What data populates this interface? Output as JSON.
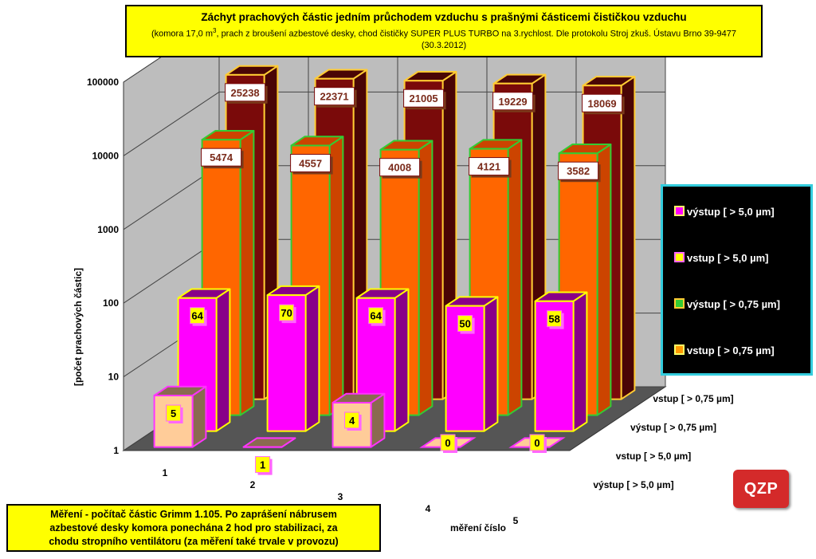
{
  "chart_data": {
    "type": "bar",
    "title": "Záchyt prachových částic jedním průchodem  vzduchu s prašnými částicemi čističkou vzduchu",
    "subtitle_pre": "(komora 17,0 m",
    "subtitle_sup": "3",
    "subtitle_post": ", prach z broušení azbestové desky, chod čističky SUPER PLUS TURBO na  3.rychlost. Dle protokolu Stroj zkuš. Ústavu Brno 39-9477 (30.3.2012)",
    "ylabel": "[počet prachových částic]",
    "xlabel": "měření číslo",
    "y_scale": "log",
    "ylim": [
      1,
      100000
    ],
    "y_ticks": [
      "1",
      "10",
      "100",
      "1000",
      "10000",
      "100000"
    ],
    "categories": [
      "1",
      "2",
      "3",
      "4",
      "5"
    ],
    "depth_labels": [
      "vstup [ > 0,75 µm]",
      "výstup [ > 0,75 µm]",
      "vstup [ > 5,0 µm]",
      "výstup [ > 5,0 µm]"
    ],
    "series": [
      {
        "name": "vstup [ > 0,75 µm]",
        "values": [
          25238,
          22371,
          21005,
          19229,
          18069
        ],
        "labels": [
          "25238",
          "22371",
          "21005",
          "19229",
          "18069"
        ],
        "face": "#7a0a0a",
        "side": "#4a0505",
        "border": "#ffcc33"
      },
      {
        "name": "výstup [ > 0,75 µm]",
        "values": [
          5474,
          4557,
          4008,
          4121,
          3582
        ],
        "labels": [
          "5474",
          "4557",
          "4008",
          "4121",
          "3582"
        ],
        "face": "#ff6600",
        "side": "#cc4400",
        "border": "#33cc33"
      },
      {
        "name": "vstup [ > 5,0 µm]",
        "values": [
          64,
          70,
          64,
          50,
          58
        ],
        "labels": [
          "64",
          "70",
          "64",
          "50",
          "58"
        ],
        "face": "#ff00ff",
        "side": "#880088",
        "border": "#ffff00"
      },
      {
        "name": "výstup [ > 5,0 µm]",
        "values": [
          5,
          1,
          4,
          0,
          0
        ],
        "labels": [
          "5",
          "1",
          "4",
          "0",
          "0"
        ],
        "face": "#ffcc99",
        "side": "#8a6a50",
        "border": "#ff33ff"
      }
    ],
    "legend": {
      "placement": "right",
      "items": [
        {
          "label": "výstup [ > 5,0 µm]",
          "color": "#ff00ff"
        },
        {
          "label": "vstup [ > 5,0 µm]",
          "color": "#ffff00"
        },
        {
          "label": "výstup [ > 0,75 µm]",
          "color": "#33cc33"
        },
        {
          "label": "vstup [ > 0,75 µm]",
          "color": "#ff9900"
        }
      ]
    }
  },
  "note": {
    "line1": "Měření - počítač částic Grimm 1.105.      Po zaprášení nábrusem",
    "line2": "azbestové desky komora ponechána  2 hod  pro stabilizaci, za",
    "line3": "chodu stropního ventilátoru (za měření také trvale v provozu)"
  },
  "logo_text": "QZP"
}
